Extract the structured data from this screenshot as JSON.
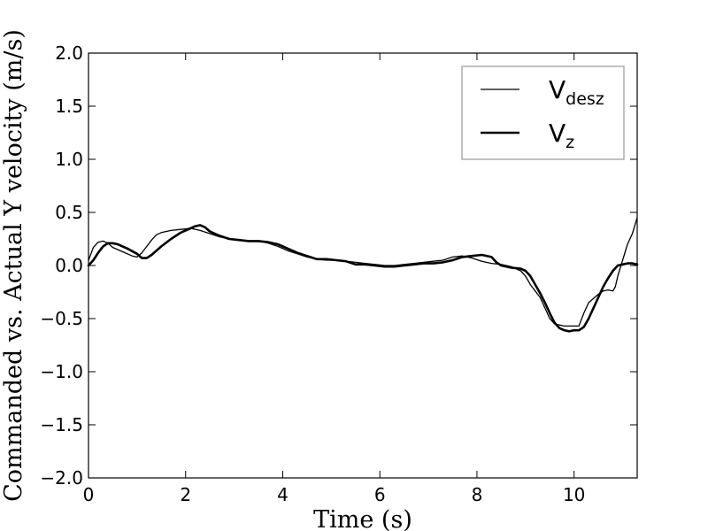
{
  "chart_data": {
    "type": "line",
    "title": "",
    "xlabel": "Time (s)",
    "ylabel": "Commanded vs. Actual Y velocity (m/s)",
    "xlim": [
      0,
      11.3
    ],
    "ylim": [
      -2.0,
      2.0
    ],
    "x_ticks": [
      0,
      2,
      4,
      6,
      8,
      10
    ],
    "x_tick_labels": [
      "0",
      "2",
      "4",
      "6",
      "8",
      "10"
    ],
    "y_ticks": [
      2.0,
      1.5,
      1.0,
      0.5,
      0.0,
      -0.5,
      -1.0,
      -1.5,
      -2.0
    ],
    "y_tick_labels": [
      "2.0",
      "1.5",
      "1.0",
      "0.5",
      "0.0",
      "−0.5",
      "−1.0",
      "−1.5",
      "−2.0"
    ],
    "grid": false,
    "legend_position": "top-right",
    "series": [
      {
        "name_main": "V",
        "name_sub": "desz",
        "style": "thin",
        "color": "#000000",
        "points": [
          [
            0.0,
            0.05
          ],
          [
            0.1,
            0.17
          ],
          [
            0.2,
            0.22
          ],
          [
            0.3,
            0.23
          ],
          [
            0.4,
            0.21
          ],
          [
            0.5,
            0.17
          ],
          [
            0.7,
            0.13
          ],
          [
            0.9,
            0.09
          ],
          [
            1.0,
            0.08
          ],
          [
            1.1,
            0.12
          ],
          [
            1.2,
            0.18
          ],
          [
            1.3,
            0.24
          ],
          [
            1.4,
            0.29
          ],
          [
            1.5,
            0.31
          ],
          [
            1.7,
            0.33
          ],
          [
            1.9,
            0.34
          ],
          [
            2.1,
            0.35
          ],
          [
            2.3,
            0.33
          ],
          [
            2.5,
            0.3
          ],
          [
            2.7,
            0.27
          ],
          [
            2.9,
            0.25
          ],
          [
            3.1,
            0.24
          ],
          [
            3.3,
            0.23
          ],
          [
            3.5,
            0.23
          ],
          [
            3.7,
            0.21
          ],
          [
            3.9,
            0.18
          ],
          [
            4.1,
            0.14
          ],
          [
            4.3,
            0.11
          ],
          [
            4.5,
            0.08
          ],
          [
            4.7,
            0.06
          ],
          [
            4.9,
            0.05
          ],
          [
            5.1,
            0.05
          ],
          [
            5.3,
            0.04
          ],
          [
            5.5,
            0.03
          ],
          [
            5.7,
            0.02
          ],
          [
            5.9,
            0.01
          ],
          [
            6.1,
            0.0
          ],
          [
            6.3,
            0.0
          ],
          [
            6.5,
            0.01
          ],
          [
            6.7,
            0.02
          ],
          [
            6.9,
            0.03
          ],
          [
            7.1,
            0.04
          ],
          [
            7.3,
            0.05
          ],
          [
            7.5,
            0.08
          ],
          [
            7.7,
            0.09
          ],
          [
            7.9,
            0.07
          ],
          [
            8.1,
            0.04
          ],
          [
            8.3,
            0.02
          ],
          [
            8.5,
            0.01
          ],
          [
            8.7,
            -0.01
          ],
          [
            8.9,
            -0.05
          ],
          [
            9.0,
            -0.1
          ],
          [
            9.1,
            -0.18
          ],
          [
            9.2,
            -0.24
          ],
          [
            9.3,
            -0.3
          ],
          [
            9.4,
            -0.4
          ],
          [
            9.5,
            -0.5
          ],
          [
            9.6,
            -0.55
          ],
          [
            9.8,
            -0.57
          ],
          [
            10.0,
            -0.57
          ],
          [
            10.1,
            -0.57
          ],
          [
            10.2,
            -0.45
          ],
          [
            10.3,
            -0.35
          ],
          [
            10.4,
            -0.31
          ],
          [
            10.5,
            -0.27
          ],
          [
            10.6,
            -0.24
          ],
          [
            10.7,
            -0.23
          ],
          [
            10.8,
            -0.24
          ],
          [
            10.85,
            -0.2
          ],
          [
            10.9,
            -0.1
          ],
          [
            11.0,
            0.05
          ],
          [
            11.1,
            0.2
          ],
          [
            11.2,
            0.3
          ],
          [
            11.3,
            0.45
          ]
        ]
      },
      {
        "name_main": "V",
        "name_sub": "z",
        "style": "thick",
        "color": "#000000",
        "points": [
          [
            0.0,
            0.0
          ],
          [
            0.1,
            0.05
          ],
          [
            0.2,
            0.12
          ],
          [
            0.3,
            0.18
          ],
          [
            0.4,
            0.21
          ],
          [
            0.5,
            0.21
          ],
          [
            0.6,
            0.2
          ],
          [
            0.8,
            0.16
          ],
          [
            1.0,
            0.11
          ],
          [
            1.1,
            0.07
          ],
          [
            1.2,
            0.07
          ],
          [
            1.3,
            0.1
          ],
          [
            1.4,
            0.14
          ],
          [
            1.5,
            0.18
          ],
          [
            1.7,
            0.25
          ],
          [
            1.9,
            0.31
          ],
          [
            2.1,
            0.35
          ],
          [
            2.2,
            0.37
          ],
          [
            2.3,
            0.38
          ],
          [
            2.4,
            0.36
          ],
          [
            2.5,
            0.32
          ],
          [
            2.7,
            0.28
          ],
          [
            2.9,
            0.25
          ],
          [
            3.1,
            0.24
          ],
          [
            3.3,
            0.23
          ],
          [
            3.5,
            0.23
          ],
          [
            3.7,
            0.22
          ],
          [
            3.9,
            0.2
          ],
          [
            4.1,
            0.16
          ],
          [
            4.3,
            0.12
          ],
          [
            4.5,
            0.09
          ],
          [
            4.7,
            0.06
          ],
          [
            4.9,
            0.06
          ],
          [
            5.1,
            0.05
          ],
          [
            5.3,
            0.04
          ],
          [
            5.5,
            0.01
          ],
          [
            5.7,
            0.01
          ],
          [
            5.9,
            0.0
          ],
          [
            6.1,
            -0.01
          ],
          [
            6.3,
            -0.01
          ],
          [
            6.5,
            0.0
          ],
          [
            6.7,
            0.01
          ],
          [
            6.9,
            0.02
          ],
          [
            7.1,
            0.02
          ],
          [
            7.3,
            0.03
          ],
          [
            7.5,
            0.05
          ],
          [
            7.7,
            0.08
          ],
          [
            7.9,
            0.09
          ],
          [
            8.1,
            0.1
          ],
          [
            8.3,
            0.08
          ],
          [
            8.4,
            0.03
          ],
          [
            8.5,
            0.0
          ],
          [
            8.7,
            -0.02
          ],
          [
            8.9,
            -0.03
          ],
          [
            9.0,
            -0.05
          ],
          [
            9.1,
            -0.1
          ],
          [
            9.2,
            -0.18
          ],
          [
            9.3,
            -0.26
          ],
          [
            9.4,
            -0.35
          ],
          [
            9.5,
            -0.45
          ],
          [
            9.6,
            -0.54
          ],
          [
            9.7,
            -0.59
          ],
          [
            9.8,
            -0.61
          ],
          [
            9.9,
            -0.62
          ],
          [
            10.0,
            -0.61
          ],
          [
            10.1,
            -0.61
          ],
          [
            10.2,
            -0.58
          ],
          [
            10.3,
            -0.5
          ],
          [
            10.4,
            -0.4
          ],
          [
            10.5,
            -0.3
          ],
          [
            10.6,
            -0.2
          ],
          [
            10.7,
            -0.12
          ],
          [
            10.8,
            -0.05
          ],
          [
            10.9,
            0.0
          ],
          [
            11.0,
            0.01
          ],
          [
            11.1,
            0.02
          ],
          [
            11.2,
            0.02
          ],
          [
            11.3,
            0.01
          ]
        ]
      }
    ]
  }
}
